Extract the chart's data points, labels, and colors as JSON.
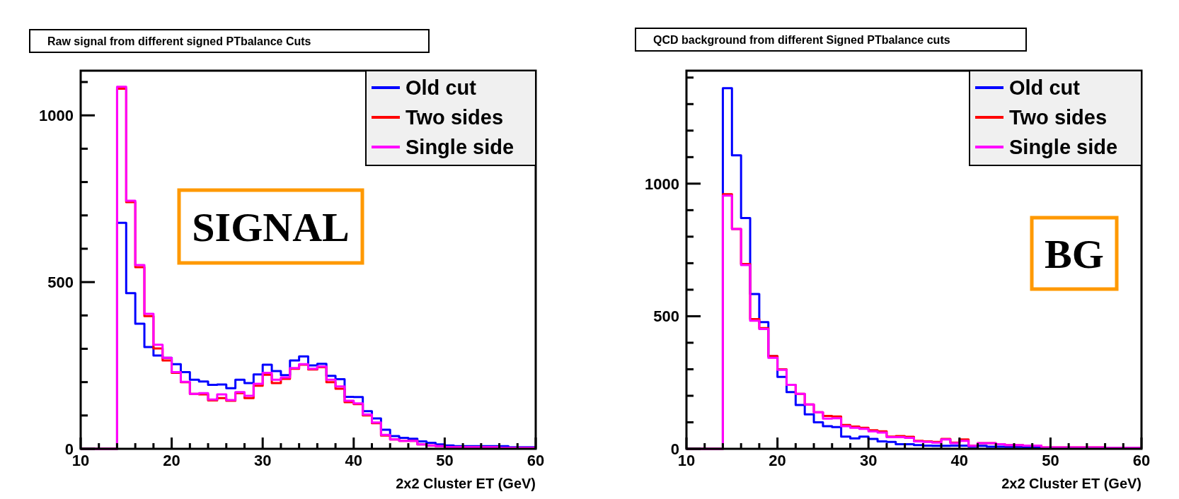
{
  "chart_data": [
    {
      "type": "histogram",
      "title": "Raw signal from different signed PTbalance Cuts",
      "xlabel": "2x2 Cluster ET (GeV)",
      "legend": "top right",
      "annotations": [
        "SIGNAL"
      ],
      "xlim": [
        10,
        60
      ],
      "ylim": [
        0,
        1134
      ],
      "xticks": [
        10,
        {
          "value": 12,
          "label": null
        },
        {
          "value": 14,
          "label": null
        },
        {
          "value": 16,
          "label": null
        },
        {
          "value": 18,
          "label": null
        },
        20,
        {
          "value": 22,
          "label": null
        },
        {
          "value": 24,
          "label": null
        },
        {
          "value": 26,
          "label": null
        },
        {
          "value": 28,
          "label": null
        },
        30,
        {
          "value": 32,
          "label": null
        },
        {
          "value": 34,
          "label": null
        },
        {
          "value": 36,
          "label": null
        },
        {
          "value": 38,
          "label": null
        },
        40,
        {
          "value": 42,
          "label": null
        },
        {
          "value": 44,
          "label": null
        },
        {
          "value": 46,
          "label": null
        },
        {
          "value": 48,
          "label": null
        },
        50,
        {
          "value": 52,
          "label": null
        },
        {
          "value": 54,
          "label": null
        },
        {
          "value": 56,
          "label": null
        },
        {
          "value": 58,
          "label": null
        },
        60
      ],
      "yticks": [
        0,
        {
          "value": 100,
          "label": null
        },
        {
          "value": 200,
          "label": null
        },
        {
          "value": 300,
          "label": null
        },
        {
          "value": 400,
          "label": null
        },
        500,
        {
          "value": 600,
          "label": null
        },
        {
          "value": 700,
          "label": null
        },
        {
          "value": 800,
          "label": null
        },
        {
          "value": 900,
          "label": null
        },
        1000,
        {
          "value": 1100,
          "label": null
        }
      ],
      "bins": [
        10,
        11,
        12,
        13,
        14,
        15,
        16,
        17,
        18,
        19,
        20,
        21,
        22,
        23,
        24,
        25,
        26,
        27,
        28,
        29,
        30,
        31,
        32,
        33,
        34,
        35,
        36,
        37,
        38,
        39,
        40,
        41,
        42,
        43,
        44,
        45,
        46,
        47,
        48,
        49,
        50,
        51,
        52,
        53,
        54,
        55,
        56,
        57,
        58,
        59,
        60
      ],
      "series": [
        {
          "name": "Old cut",
          "color": "#0000ff",
          "values": [
            0,
            0,
            0,
            0,
            678,
            467,
            375,
            305,
            280,
            273,
            254,
            230,
            207,
            202,
            192,
            193,
            182,
            207,
            197,
            223,
            252,
            233,
            221,
            265,
            277,
            250,
            255,
            219,
            209,
            156,
            155,
            113,
            91,
            57,
            38,
            33,
            30,
            22,
            18,
            13,
            10,
            8,
            8,
            8,
            8,
            8,
            8,
            5,
            5,
            5
          ]
        },
        {
          "name": "Two sides",
          "color": "#ff0000",
          "values": [
            0,
            0,
            0,
            0,
            1080,
            740,
            545,
            398,
            301,
            265,
            228,
            200,
            165,
            163,
            145,
            152,
            144,
            167,
            152,
            189,
            222,
            197,
            210,
            240,
            252,
            238,
            245,
            200,
            180,
            140,
            134,
            100,
            77,
            40,
            28,
            24,
            24,
            13,
            10,
            8,
            5,
            5,
            5,
            5,
            5,
            5,
            3,
            3,
            3,
            3
          ]
        },
        {
          "name": "Single side",
          "color": "#ff00ff",
          "values": [
            0,
            0,
            0,
            0,
            1086,
            744,
            551,
            405,
            312,
            273,
            230,
            201,
            165,
            167,
            148,
            163,
            146,
            170,
            159,
            195,
            228,
            207,
            214,
            242,
            254,
            240,
            247,
            207,
            187,
            144,
            136,
            103,
            79,
            42,
            28,
            24,
            24,
            13,
            10,
            8,
            5,
            5,
            5,
            5,
            5,
            5,
            3,
            3,
            3,
            3
          ]
        }
      ]
    },
    {
      "type": "histogram",
      "title": "QCD background from different Signed PTbalance cuts",
      "xlabel": "2x2 Cluster ET (GeV)",
      "legend": "top right",
      "annotations": [
        "BG"
      ],
      "xlim": [
        10,
        60
      ],
      "ylim": [
        0,
        1426
      ],
      "xticks": [
        10,
        {
          "value": 12,
          "label": null
        },
        {
          "value": 14,
          "label": null
        },
        {
          "value": 16,
          "label": null
        },
        {
          "value": 18,
          "label": null
        },
        20,
        {
          "value": 22,
          "label": null
        },
        {
          "value": 24,
          "label": null
        },
        {
          "value": 26,
          "label": null
        },
        {
          "value": 28,
          "label": null
        },
        30,
        {
          "value": 32,
          "label": null
        },
        {
          "value": 34,
          "label": null
        },
        {
          "value": 36,
          "label": null
        },
        {
          "value": 38,
          "label": null
        },
        40,
        {
          "value": 42,
          "label": null
        },
        {
          "value": 44,
          "label": null
        },
        {
          "value": 46,
          "label": null
        },
        {
          "value": 48,
          "label": null
        },
        50,
        {
          "value": 52,
          "label": null
        },
        {
          "value": 54,
          "label": null
        },
        {
          "value": 56,
          "label": null
        },
        {
          "value": 58,
          "label": null
        },
        60
      ],
      "yticks": [
        0,
        {
          "value": 100,
          "label": null
        },
        {
          "value": 200,
          "label": null
        },
        {
          "value": 300,
          "label": null
        },
        {
          "value": 400,
          "label": null
        },
        500,
        {
          "value": 600,
          "label": null
        },
        {
          "value": 700,
          "label": null
        },
        {
          "value": 800,
          "label": null
        },
        {
          "value": 900,
          "label": null
        },
        1000,
        {
          "value": 1100,
          "label": null
        },
        {
          "value": 1200,
          "label": null
        },
        {
          "value": 1300,
          "label": null
        },
        {
          "value": 1400,
          "label": null
        }
      ],
      "bins": [
        10,
        11,
        12,
        13,
        14,
        15,
        16,
        17,
        18,
        19,
        20,
        21,
        22,
        23,
        24,
        25,
        26,
        27,
        28,
        29,
        30,
        31,
        32,
        33,
        34,
        35,
        36,
        37,
        38,
        39,
        40,
        41,
        42,
        43,
        44,
        45,
        46,
        47,
        48,
        49,
        50,
        51,
        52,
        53,
        54,
        55,
        56,
        57,
        58,
        59,
        60
      ],
      "series": [
        {
          "name": "Old cut",
          "color": "#0000ff",
          "values": [
            0,
            0,
            0,
            0,
            1360,
            1107,
            870,
            584,
            478,
            349,
            271,
            214,
            165,
            130,
            100,
            85,
            82,
            46,
            39,
            46,
            37,
            28,
            26,
            17,
            17,
            14,
            12,
            11,
            11,
            12,
            12,
            8,
            11,
            8,
            8,
            7,
            7,
            5,
            5,
            4,
            4,
            4,
            4,
            4,
            4,
            4,
            4,
            4,
            4,
            4
          ]
        },
        {
          "name": "Two sides",
          "color": "#ff0000",
          "values": [
            0,
            0,
            0,
            0,
            960,
            829,
            697,
            489,
            455,
            350,
            300,
            241,
            207,
            167,
            138,
            124,
            122,
            90,
            84,
            79,
            70,
            66,
            46,
            48,
            45,
            30,
            28,
            26,
            37,
            23,
            35,
            12,
            21,
            21,
            17,
            14,
            14,
            12,
            12,
            5,
            5,
            5,
            5,
            5,
            5,
            5,
            4,
            4,
            4,
            4
          ]
        },
        {
          "name": "Single side",
          "color": "#ff00ff",
          "values": [
            0,
            0,
            0,
            0,
            955,
            829,
            693,
            483,
            452,
            343,
            298,
            241,
            207,
            167,
            138,
            114,
            115,
            85,
            79,
            75,
            66,
            61,
            44,
            44,
            41,
            28,
            26,
            23,
            35,
            21,
            30,
            11,
            21,
            21,
            17,
            14,
            14,
            12,
            12,
            5,
            5,
            5,
            5,
            5,
            5,
            5,
            4,
            4,
            4,
            4
          ]
        }
      ]
    }
  ]
}
